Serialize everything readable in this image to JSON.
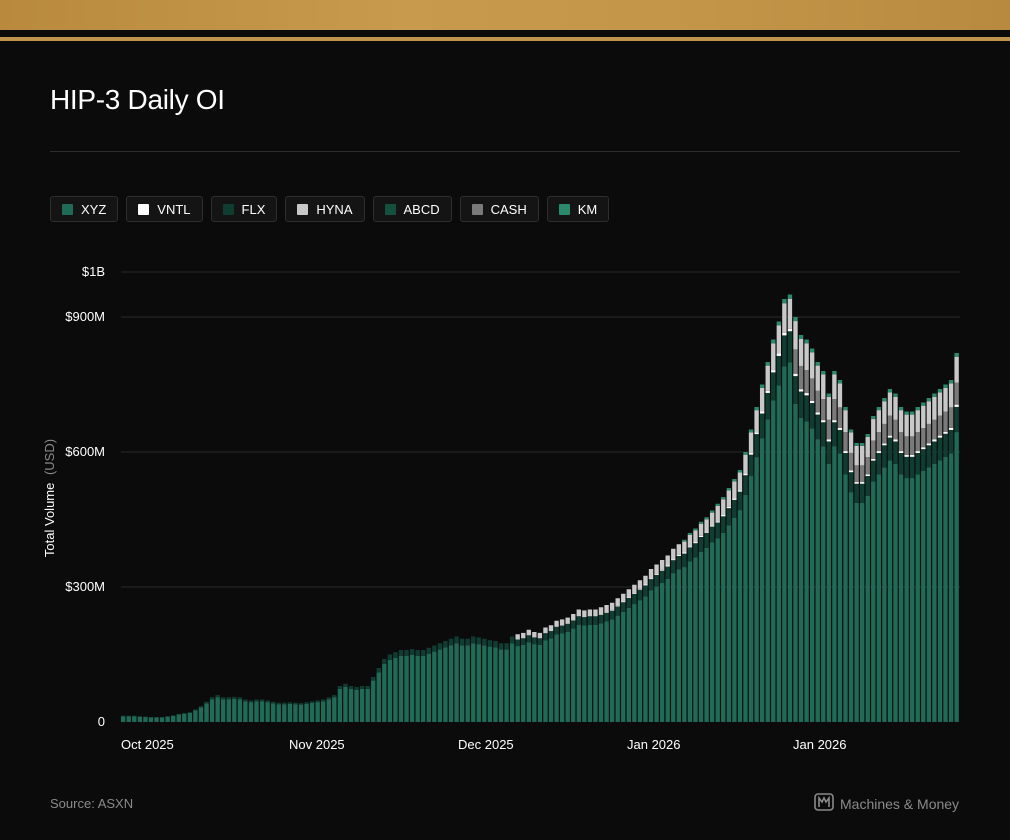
{
  "header": {
    "title": "HIP-3 Daily OI"
  },
  "legend": [
    {
      "label": "XYZ",
      "color": "#1f6b58"
    },
    {
      "label": "VNTL",
      "color": "#ffffff"
    },
    {
      "label": "FLX",
      "color": "#0f3d31"
    },
    {
      "label": "HYNA",
      "color": "#c8c8c8"
    },
    {
      "label": "ABCD",
      "color": "#15503f"
    },
    {
      "label": "CASH",
      "color": "#7a7a7a"
    },
    {
      "label": "KM",
      "color": "#2a8a6e"
    }
  ],
  "footer": {
    "source": "Source: ASXN",
    "brand": "Machines & Money"
  },
  "chart_data": {
    "type": "bar",
    "stacked": true,
    "title": "HIP-3 Daily OI",
    "ylabel": "Total Volume",
    "ylabel_unit": "(USD)",
    "ylim": [
      0,
      1000000000
    ],
    "yticks": [
      0,
      300000000,
      600000000,
      900000000,
      1000000000
    ],
    "ytick_labels": [
      "0",
      "$300M",
      "$600M",
      "$900M",
      "$1B"
    ],
    "xtick_labels": [
      "Oct 2025",
      "Nov 2025",
      "Dec 2025",
      "Jan 2026",
      "Jan 2026"
    ],
    "grid": true,
    "legend_position": "top-left",
    "series_colors": {
      "XYZ": "#1f6b58",
      "VNTL": "#ffffff",
      "FLX": "#0f3d31",
      "HYNA": "#c8c8c8",
      "ABCD": "#15503f",
      "CASH": "#7a7a7a",
      "KM": "#2a8a6e"
    },
    "x": [
      "Oct 2025 D01",
      "Oct 2025 D02",
      "Oct 2025 D03",
      "Oct 2025 D04",
      "Oct 2025 D05",
      "Oct 2025 D06",
      "Oct 2025 D07",
      "Oct 2025 D08",
      "Oct 2025 D09",
      "Oct 2025 D10",
      "Oct 2025 D11",
      "Oct 2025 D12",
      "Oct 2025 D13",
      "Oct 2025 D14",
      "Oct 2025 D15",
      "Oct 2025 D16",
      "Oct 2025 D17",
      "Oct 2025 D18",
      "Oct 2025 D19",
      "Oct 2025 D20",
      "Oct 2025 D21",
      "Oct 2025 D22",
      "Oct 2025 D23",
      "Oct 2025 D24",
      "Oct 2025 D25",
      "Oct 2025 D26",
      "Oct 2025 D27",
      "Oct 2025 D28",
      "Oct 2025 D29",
      "Oct 2025 D30",
      "Oct 2025 D31",
      "Nov 2025 D01",
      "Nov 2025 D02",
      "Nov 2025 D03",
      "Nov 2025 D04",
      "Nov 2025 D05",
      "Nov 2025 D06",
      "Nov 2025 D07",
      "Nov 2025 D08",
      "Nov 2025 D09",
      "Nov 2025 D10",
      "Nov 2025 D11",
      "Nov 2025 D12",
      "Nov 2025 D13",
      "Nov 2025 D14",
      "Nov 2025 D15",
      "Nov 2025 D16",
      "Nov 2025 D17",
      "Nov 2025 D18",
      "Nov 2025 D19",
      "Nov 2025 D20",
      "Nov 2025 D21",
      "Nov 2025 D22",
      "Nov 2025 D23",
      "Nov 2025 D24",
      "Nov 2025 D25",
      "Nov 2025 D26",
      "Nov 2025 D27",
      "Nov 2025 D28",
      "Nov 2025 D29",
      "Nov 2025 D30",
      "Dec 2025 D01",
      "Dec 2025 D02",
      "Dec 2025 D03",
      "Dec 2025 D04",
      "Dec 2025 D05",
      "Dec 2025 D06",
      "Dec 2025 D07",
      "Dec 2025 D08",
      "Dec 2025 D09",
      "Dec 2025 D10",
      "Dec 2025 D11",
      "Dec 2025 D12",
      "Dec 2025 D13",
      "Dec 2025 D14",
      "Dec 2025 D15",
      "Dec 2025 D16",
      "Dec 2025 D17",
      "Dec 2025 D18",
      "Dec 2025 D19",
      "Dec 2025 D20",
      "Dec 2025 D21",
      "Dec 2025 D22",
      "Dec 2025 D23",
      "Dec 2025 D24",
      "Dec 2025 D25",
      "Dec 2025 D26",
      "Dec 2025 D27",
      "Dec 2025 D28",
      "Dec 2025 D29",
      "Dec 2025 D30",
      "Dec 2025 D31",
      "Jan 2026 D01",
      "Jan 2026 D02",
      "Jan 2026 D03",
      "Jan 2026 D04",
      "Jan 2026 D05",
      "Jan 2026 D06",
      "Jan 2026 D07",
      "Jan 2026 D08",
      "Jan 2026 D09",
      "Jan 2026 D10",
      "Jan 2026 D11",
      "Jan 2026 D12",
      "Jan 2026 D13",
      "Jan 2026 D14",
      "Jan 2026 D15",
      "Jan 2026 D16",
      "Jan 2026 D17",
      "Jan 2026 D18",
      "Jan 2026 D19",
      "Jan 2026 D20",
      "Jan 2026 D21",
      "Jan 2026 D22",
      "Jan 2026 D23",
      "Jan 2026 D24",
      "Jan 2026 D25",
      "Jan 2026 D26",
      "Jan 2026 D27",
      "Jan 2026 D28",
      "Jan 2026 D29",
      "Jan 2026 D30",
      "Jan 2026 D31",
      "Feb 2026 D01",
      "Feb 2026 D02",
      "Feb 2026 D03",
      "Feb 2026 D04",
      "Feb 2026 D05",
      "Feb 2026 D06",
      "Feb 2026 D07",
      "Feb 2026 D08",
      "Feb 2026 D09",
      "Feb 2026 D10",
      "Feb 2026 D11",
      "Feb 2026 D12",
      "Feb 2026 D13",
      "Feb 2026 D14",
      "Feb 2026 D15",
      "Feb 2026 D16",
      "Feb 2026 D17",
      "Feb 2026 D18",
      "Feb 2026 D19",
      "Feb 2026 D20",
      "Feb 2026 D21",
      "Feb 2026 D22",
      "Feb 2026 D23",
      "Feb 2026 D24",
      "Feb 2026 D25",
      "Feb 2026 D26",
      "Feb 2026 D27",
      "Feb 2026 D28"
    ],
    "totals_millions": [
      14,
      14,
      14,
      13,
      12,
      11,
      11,
      11,
      13,
      15,
      18,
      20,
      22,
      28,
      35,
      45,
      55,
      60,
      55,
      55,
      56,
      55,
      50,
      48,
      50,
      50,
      48,
      45,
      43,
      43,
      44,
      43,
      42,
      44,
      46,
      48,
      50,
      55,
      60,
      80,
      85,
      80,
      78,
      80,
      80,
      100,
      120,
      140,
      150,
      155,
      160,
      160,
      162,
      160,
      160,
      165,
      170,
      175,
      180,
      185,
      190,
      185,
      185,
      190,
      188,
      185,
      182,
      180,
      175,
      175,
      190,
      195,
      198,
      205,
      200,
      198,
      210,
      215,
      225,
      228,
      232,
      240,
      250,
      248,
      250,
      250,
      255,
      260,
      265,
      275,
      285,
      295,
      305,
      315,
      325,
      340,
      350,
      360,
      370,
      385,
      395,
      405,
      420,
      430,
      445,
      455,
      470,
      485,
      500,
      520,
      540,
      560,
      600,
      650,
      700,
      750,
      800,
      850,
      890,
      940,
      950,
      900,
      860,
      850,
      830,
      800,
      780,
      730,
      780,
      760,
      700,
      650,
      620,
      620,
      640,
      680,
      700,
      720,
      740,
      730,
      700,
      690,
      690,
      700,
      710,
      720,
      730,
      740,
      750,
      760,
      820
    ]
  }
}
